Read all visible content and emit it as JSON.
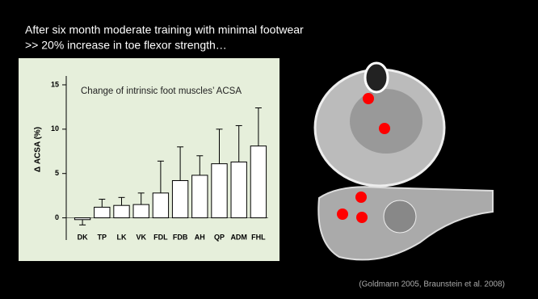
{
  "slide": {
    "heading": [
      "After six month moderate training with minimal footwear",
      ">> 20% increase in toe flexor strength…"
    ],
    "citation": "(Goldmann 2005, Braunstein et al. 2008)"
  },
  "chart_data": {
    "type": "bar",
    "title": "Change of intrinsic foot muscles’ ACSA",
    "ylabel": "Δ ACSA (%)",
    "categories": [
      "DK",
      "TP",
      "LK",
      "VK",
      "FDL",
      "FDB",
      "AH",
      "QP",
      "ADM",
      "FHL"
    ],
    "values": [
      -0.2,
      1.2,
      1.4,
      1.5,
      2.8,
      4.2,
      4.8,
      6.1,
      6.3,
      8.1
    ],
    "errors": [
      0.6,
      0.9,
      0.9,
      1.3,
      3.6,
      3.8,
      2.2,
      3.9,
      4.1,
      4.3
    ],
    "color": "#ffffff",
    "edgecolor": "#000000",
    "ylim": [
      -2.5,
      16
    ],
    "yticks": [
      0,
      5,
      10,
      15
    ]
  }
}
